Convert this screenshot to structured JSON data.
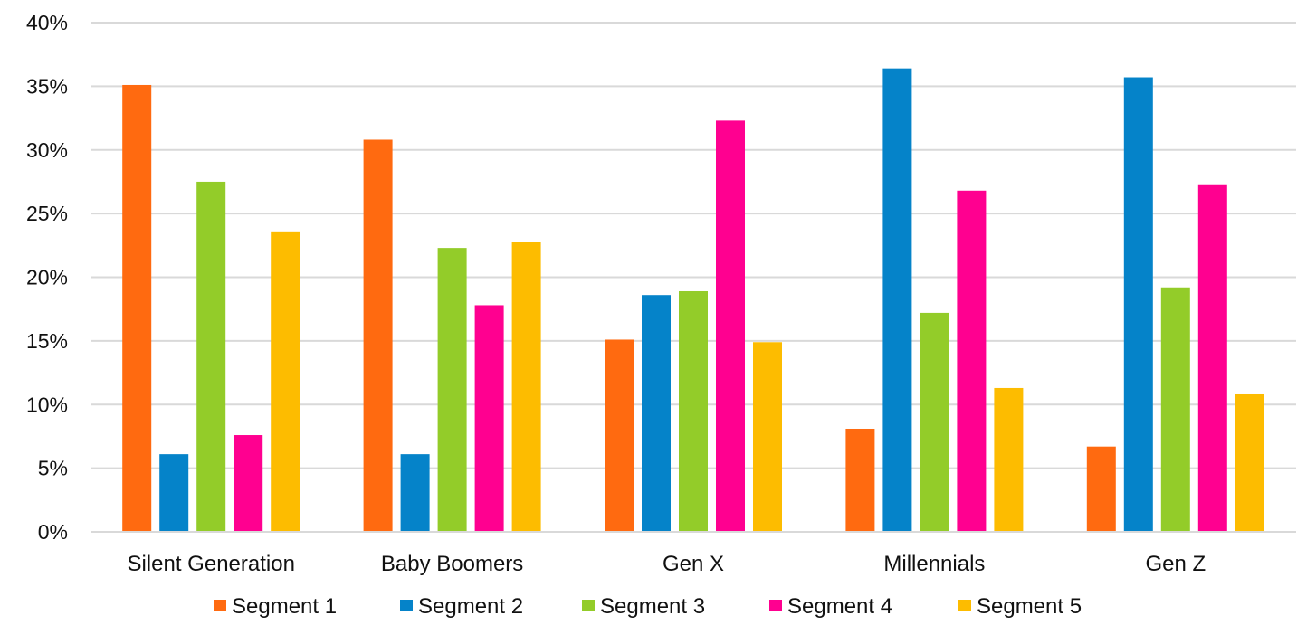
{
  "chart_data": {
    "type": "bar",
    "title": "",
    "xlabel": "",
    "ylabel": "",
    "ylim": [
      0,
      40
    ],
    "y_tick_step": 5,
    "y_tick_format": "percent",
    "y_ticks": [
      "0%",
      "5%",
      "10%",
      "15%",
      "20%",
      "25%",
      "30%",
      "35%",
      "40%"
    ],
    "grid": true,
    "legend_position": "bottom",
    "categories": [
      "Silent Generation",
      "Baby Boomers",
      "Gen X",
      "Millennials",
      "Gen Z"
    ],
    "series": [
      {
        "name": "Segment 1",
        "color": "#FF6A10",
        "values": [
          35.1,
          30.8,
          15.1,
          8.1,
          6.7
        ]
      },
      {
        "name": "Segment 2",
        "color": "#0583C9",
        "values": [
          6.1,
          6.1,
          18.6,
          36.4,
          35.7
        ]
      },
      {
        "name": "Segment 3",
        "color": "#93CC29",
        "values": [
          27.5,
          22.3,
          18.9,
          17.2,
          19.2
        ]
      },
      {
        "name": "Segment 4",
        "color": "#FF0090",
        "values": [
          7.6,
          17.8,
          32.3,
          26.8,
          27.3
        ]
      },
      {
        "name": "Segment 5",
        "color": "#FDBC00",
        "values": [
          23.6,
          22.8,
          14.9,
          11.3,
          10.8
        ]
      }
    ]
  }
}
